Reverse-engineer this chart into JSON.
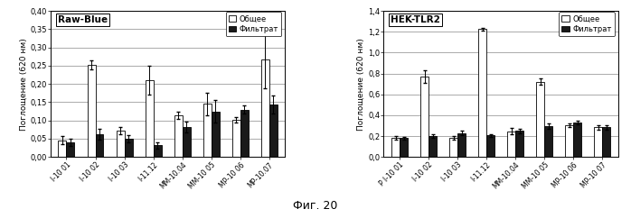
{
  "left": {
    "title": "Raw-Blue",
    "ylabel": "Поглощение (620 нм)",
    "ylim": [
      0.0,
      0.4
    ],
    "yticks": [
      0.0,
      0.05,
      0.1,
      0.15,
      0.2,
      0.25,
      0.3,
      0.35,
      0.4
    ],
    "ytick_labels": [
      "0,00",
      "0,05",
      "0,10",
      "0,15",
      "0,20",
      "0,25",
      "0,30",
      "0,35",
      "0,40"
    ],
    "categories": [
      "I-10 01",
      "I-10 02",
      "I-10 03",
      "I-11.12",
      "MM-10.04",
      "MM-10 05",
      "MP-10 06",
      "MP-10.07"
    ],
    "общее": [
      0.046,
      0.252,
      0.072,
      0.21,
      0.115,
      0.145,
      0.102,
      0.268
    ],
    "фильтрат": [
      0.04,
      0.063,
      0.05,
      0.032,
      0.082,
      0.125,
      0.13,
      0.143
    ],
    "общее_err": [
      0.012,
      0.012,
      0.01,
      0.04,
      0.01,
      0.03,
      0.008,
      0.08
    ],
    "фильтрат_err": [
      0.01,
      0.015,
      0.01,
      0.008,
      0.015,
      0.03,
      0.01,
      0.025
    ]
  },
  "right": {
    "title": "HEK-TLR2",
    "ylabel": "Поглощение (620 нм)",
    "ylim": [
      0.0,
      1.4
    ],
    "yticks": [
      0.0,
      0.2,
      0.4,
      0.6,
      0.8,
      1.0,
      1.2,
      1.4
    ],
    "ytick_labels": [
      "0,0",
      "0,2",
      "0,4",
      "0,6",
      "0,8",
      "1,0",
      "1,2",
      "1,4"
    ],
    "categories": [
      "P I-10 01",
      "I-10 02",
      "I-10 03",
      "I-11.12",
      "MM-10.04",
      "MM-10 05",
      "MP-10 06",
      "MP-10 07"
    ],
    "общее": [
      0.185,
      0.77,
      0.185,
      1.225,
      0.245,
      0.72,
      0.305,
      0.285
    ],
    "фильтрат": [
      0.18,
      0.2,
      0.23,
      0.205,
      0.25,
      0.295,
      0.33,
      0.285
    ],
    "общее_err": [
      0.015,
      0.06,
      0.015,
      0.015,
      0.03,
      0.03,
      0.02,
      0.02
    ],
    "фильтрат_err": [
      0.015,
      0.015,
      0.025,
      0.015,
      0.02,
      0.025,
      0.02,
      0.02
    ]
  },
  "legend_labels": [
    "Общее",
    "Фильтрат"
  ],
  "color_общее": "#ffffff",
  "color_фильтрат": "#1a1a1a",
  "edgecolor": "#000000",
  "caption": "Фиг. 20",
  "bar_width": 0.28,
  "background_color": "#ffffff"
}
